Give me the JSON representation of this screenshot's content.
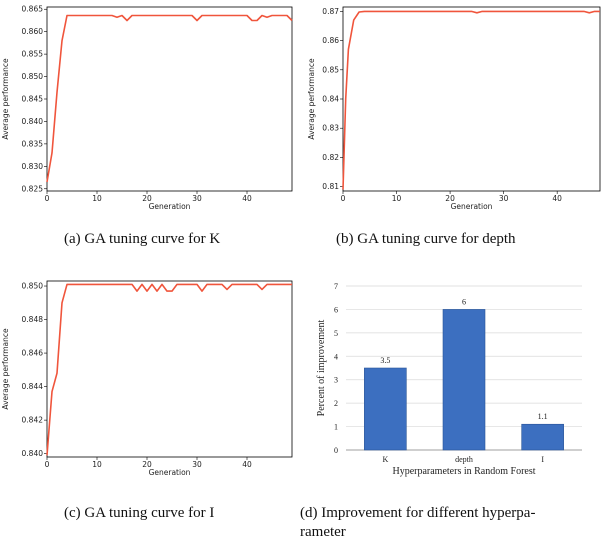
{
  "captions": {
    "a": "(a)  GA tuning curve for K",
    "b": "(b)  GA tuning curve for depth",
    "c": "(c)  GA tuning curve for I",
    "d_line1": "(d)  Improvement for different hyperpa-",
    "d_line2": "rameter"
  },
  "colors": {
    "line": "#f0553c",
    "bar": "#3c6fc0",
    "grid": "#d9d9d9"
  },
  "chart_data": [
    {
      "id": "a",
      "type": "line",
      "xlabel": "Generation",
      "ylabel": "Average performance",
      "xlim": [
        0,
        49
      ],
      "ylim": [
        0.8245,
        0.8655
      ],
      "xticks": [
        0,
        10,
        20,
        30,
        40
      ],
      "yticks": [
        "0.825",
        "0.830",
        "0.835",
        "0.840",
        "0.845",
        "0.850",
        "0.855",
        "0.860",
        "0.865"
      ],
      "x": [
        0,
        1,
        2,
        3,
        4,
        5,
        10,
        12,
        13,
        14,
        15,
        16,
        17,
        20,
        25,
        29,
        30,
        31,
        35,
        40,
        41,
        42,
        43,
        44,
        45,
        48,
        49
      ],
      "y": [
        0.8265,
        0.833,
        0.8465,
        0.858,
        0.8636,
        0.8636,
        0.8636,
        0.8636,
        0.8636,
        0.8632,
        0.8636,
        0.8625,
        0.8636,
        0.8636,
        0.8636,
        0.8636,
        0.8625,
        0.8636,
        0.8636,
        0.8636,
        0.8625,
        0.8625,
        0.8636,
        0.8632,
        0.8636,
        0.8636,
        0.8625
      ]
    },
    {
      "id": "b",
      "type": "line",
      "xlabel": "Generation",
      "ylabel": "Average performance",
      "xlim": [
        0,
        48
      ],
      "ylim": [
        0.8085,
        0.8715
      ],
      "xticks": [
        0,
        10,
        20,
        30,
        40
      ],
      "yticks": [
        "0.81",
        "0.82",
        "0.83",
        "0.84",
        "0.85",
        "0.86",
        "0.87"
      ],
      "x": [
        0,
        0.5,
        1,
        2,
        3,
        4,
        10,
        20,
        24,
        25,
        26,
        30,
        40,
        45,
        46,
        47,
        48
      ],
      "y": [
        0.809,
        0.84,
        0.857,
        0.867,
        0.8698,
        0.87,
        0.87,
        0.87,
        0.87,
        0.8695,
        0.87,
        0.87,
        0.87,
        0.87,
        0.8695,
        0.87,
        0.87
      ]
    },
    {
      "id": "c",
      "type": "line",
      "xlabel": "Generation",
      "ylabel": "Average performance",
      "xlim": [
        0,
        49
      ],
      "ylim": [
        0.8398,
        0.8503
      ],
      "xticks": [
        0,
        10,
        20,
        30,
        40
      ],
      "yticks": [
        "0.840",
        "0.842",
        "0.844",
        "0.846",
        "0.848",
        "0.850"
      ],
      "x": [
        0,
        1,
        2,
        3,
        4,
        5,
        10,
        15,
        17,
        18,
        19,
        20,
        21,
        22,
        23,
        24,
        25,
        26,
        27,
        30,
        31,
        32,
        33,
        35,
        36,
        37,
        38,
        40,
        42,
        43,
        44,
        45,
        49
      ],
      "y": [
        0.8399,
        0.8437,
        0.8448,
        0.849,
        0.8501,
        0.8501,
        0.8501,
        0.8501,
        0.8501,
        0.8497,
        0.8501,
        0.8497,
        0.8501,
        0.8497,
        0.8501,
        0.8497,
        0.8497,
        0.8501,
        0.8501,
        0.8501,
        0.8497,
        0.8501,
        0.8501,
        0.8501,
        0.8498,
        0.8501,
        0.8501,
        0.8501,
        0.8501,
        0.8498,
        0.8501,
        0.8501,
        0.8501
      ]
    },
    {
      "id": "d",
      "type": "bar",
      "xlabel": "Hyperparameters in Random Forest",
      "ylabel": "Percent of improvement",
      "categories": [
        "K",
        "depth",
        "I"
      ],
      "values": [
        3.5,
        6,
        1.1
      ],
      "value_labels": [
        "3.5",
        "6",
        "1.1"
      ],
      "ylim": [
        0,
        7
      ],
      "yticks": [
        "0",
        "1",
        "2",
        "3",
        "4",
        "5",
        "6",
        "7"
      ],
      "grid": true
    }
  ]
}
